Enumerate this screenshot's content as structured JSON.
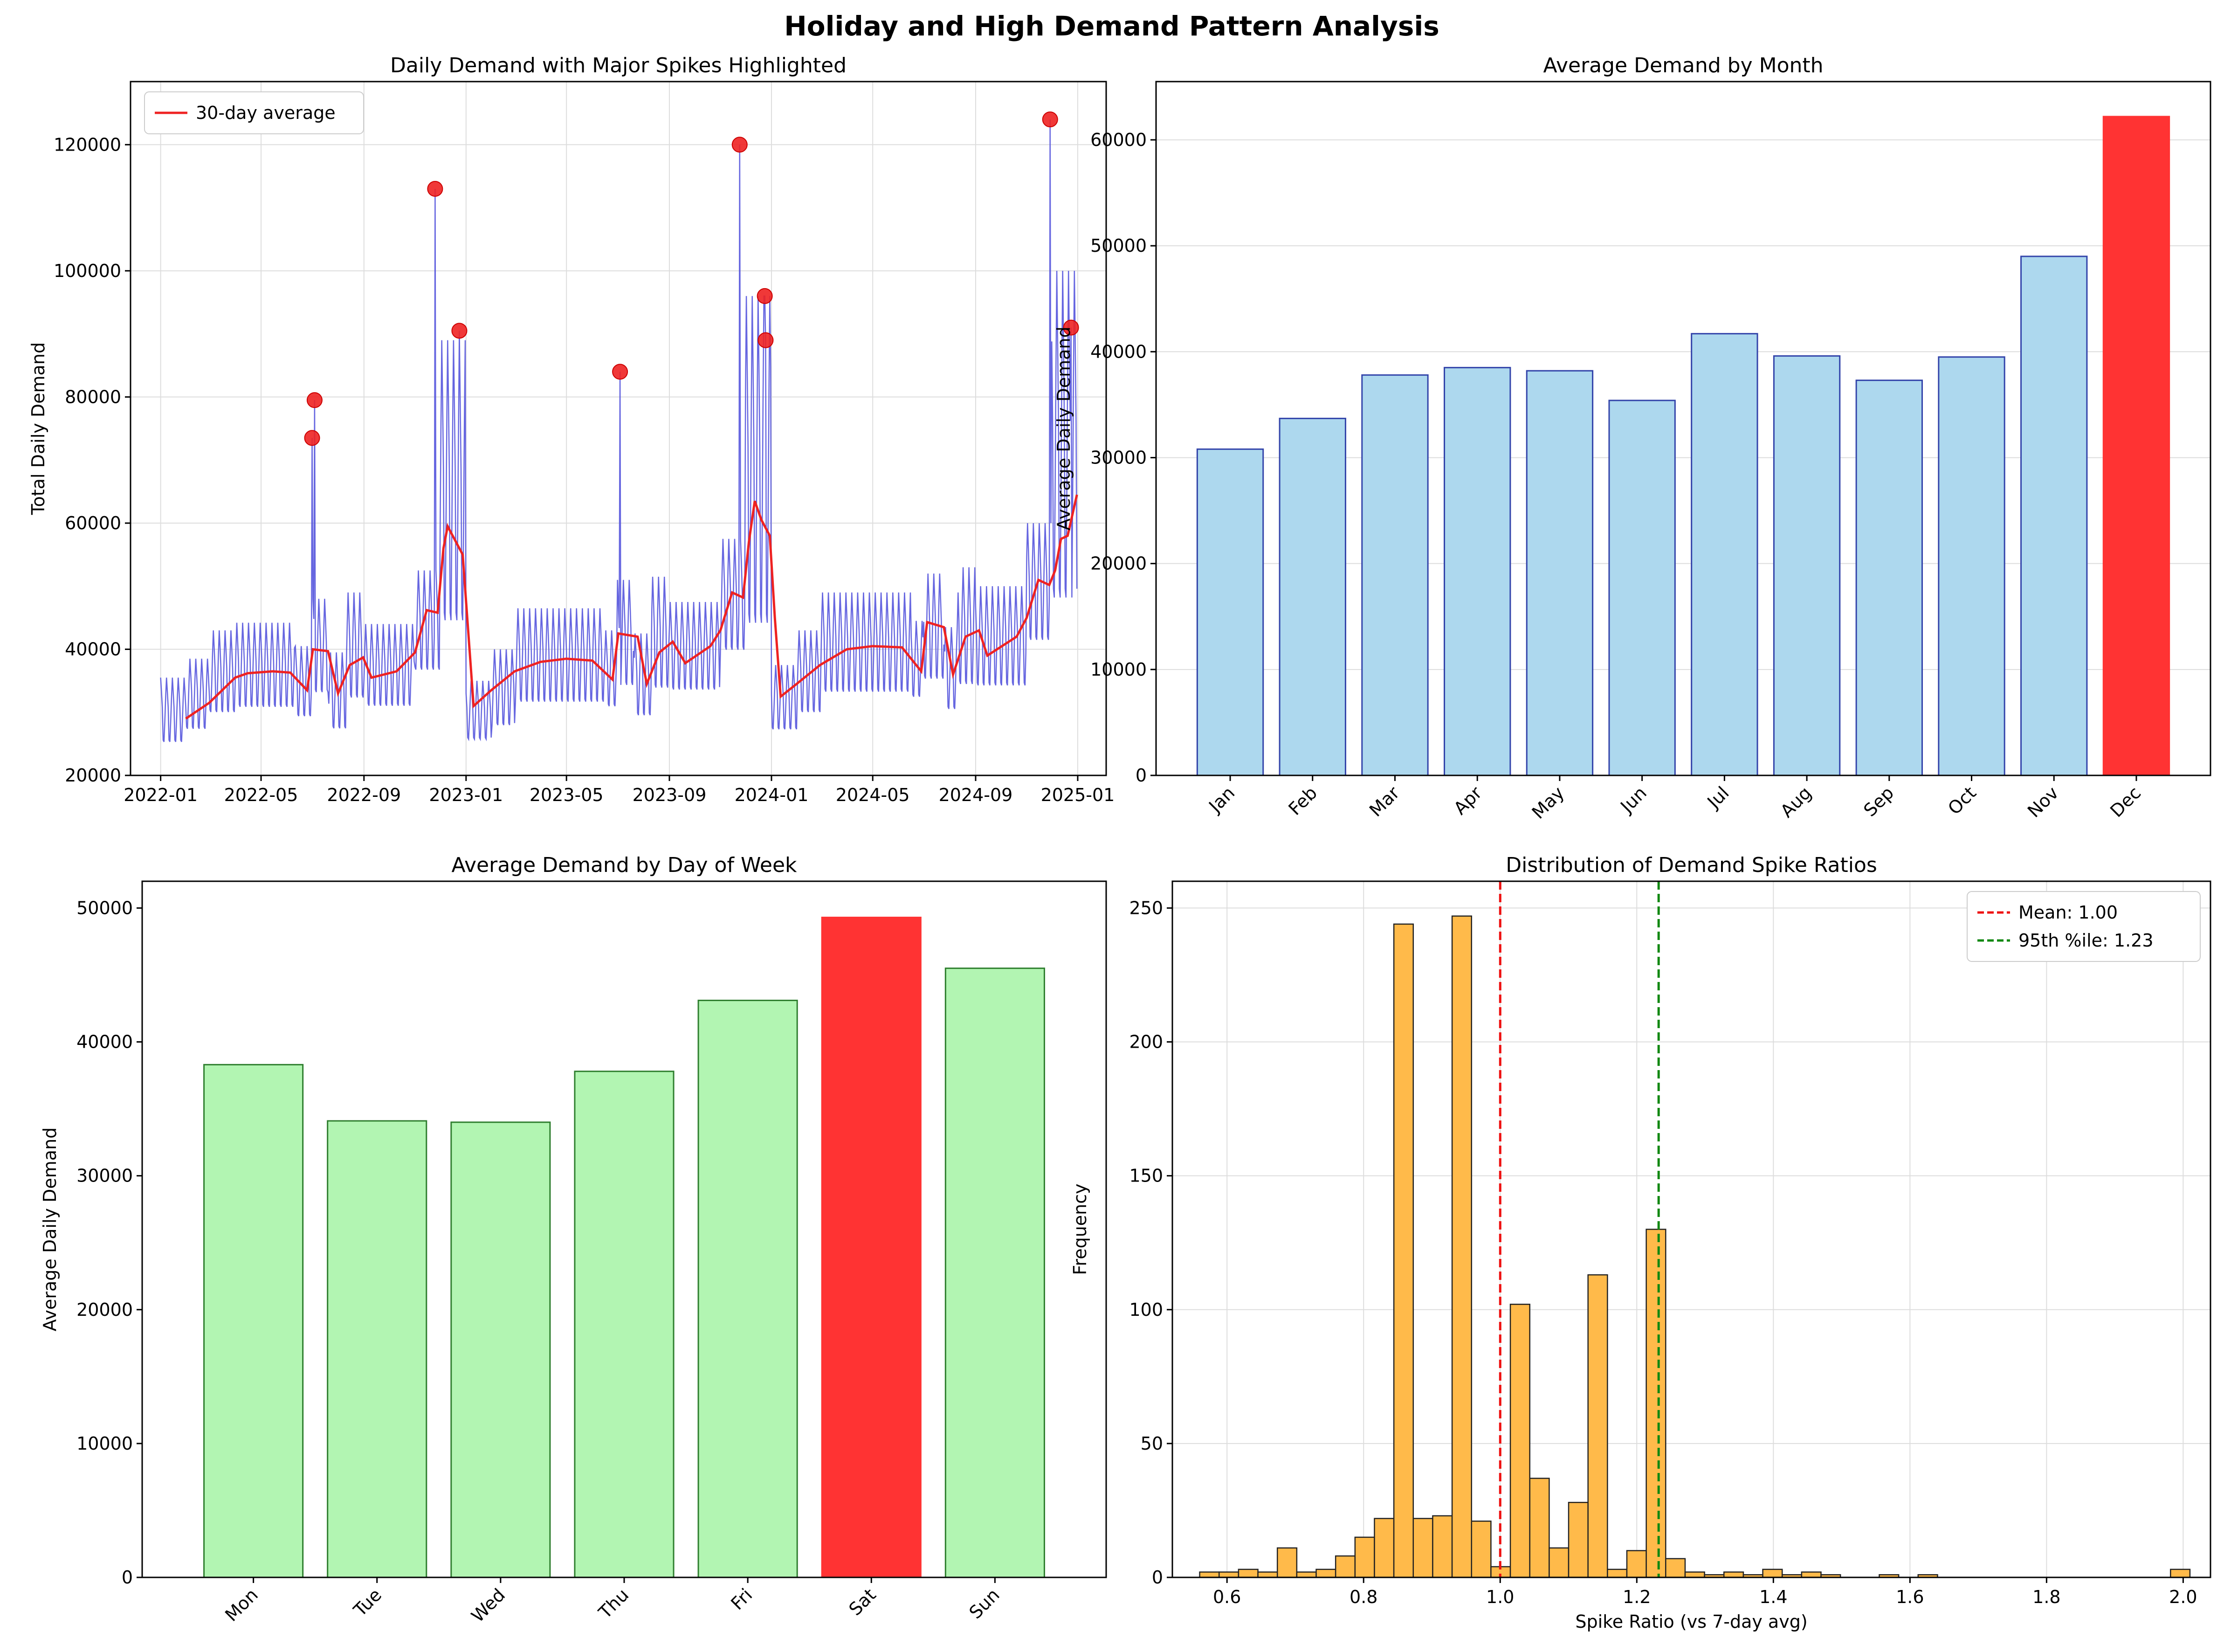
{
  "figure": {
    "title": "Holiday and High Demand Pattern Analysis"
  },
  "chart_data": [
    {
      "id": "daily",
      "type": "line",
      "title": "Daily Demand with Major Spikes Highlighted",
      "xlabel": "",
      "ylabel": "Total Daily Demand",
      "x_range": [
        "2021-11-26",
        "2025-02-04"
      ],
      "ylim": [
        20000,
        130000
      ],
      "x_ticks": [
        "2022-01",
        "2022-05",
        "2022-09",
        "2023-01",
        "2023-05",
        "2023-09",
        "2024-01",
        "2024-05",
        "2024-09",
        "2025-01"
      ],
      "y_ticks": [
        20000,
        40000,
        60000,
        80000,
        100000,
        120000
      ],
      "legend": {
        "position": "top-left",
        "entries": [
          "30-day average"
        ]
      },
      "grid": true,
      "series_colors": {
        "daily": "#5555dd",
        "avg": "#ee2222",
        "spike": "#ee2222"
      },
      "segments": [
        {
          "start": "2022-01-01",
          "end": "2022-01-31",
          "base": 30000,
          "amp": 5500
        },
        {
          "start": "2022-02-01",
          "end": "2022-02-28",
          "base": 32500,
          "amp": 6000
        },
        {
          "start": "2022-03-01",
          "end": "2022-03-31",
          "base": 36000,
          "amp": 7000
        },
        {
          "start": "2022-04-01",
          "end": "2022-06-10",
          "base": 37000,
          "amp": 7200
        },
        {
          "start": "2022-06-11",
          "end": "2022-06-30",
          "base": 34500,
          "amp": 6000
        },
        {
          "start": "2022-07-01",
          "end": "2022-07-20",
          "base": 40000,
          "amp": 8000
        },
        {
          "start": "2022-07-21",
          "end": "2022-08-10",
          "base": 33000,
          "amp": 6500
        },
        {
          "start": "2022-08-11",
          "end": "2022-08-31",
          "base": 40000,
          "amp": 9000
        },
        {
          "start": "2022-09-01",
          "end": "2022-10-31",
          "base": 37000,
          "amp": 7000
        },
        {
          "start": "2022-11-01",
          "end": "2022-11-30",
          "base": 44000,
          "amp": 8500
        },
        {
          "start": "2022-12-01",
          "end": "2022-12-31",
          "base": 65000,
          "amp": 24000
        },
        {
          "start": "2023-01-01",
          "end": "2023-01-31",
          "base": 30000,
          "amp": 5000
        },
        {
          "start": "2023-02-01",
          "end": "2023-02-28",
          "base": 33500,
          "amp": 6500
        },
        {
          "start": "2023-03-01",
          "end": "2023-06-15",
          "base": 38500,
          "amp": 8000
        },
        {
          "start": "2023-06-16",
          "end": "2023-06-30",
          "base": 36500,
          "amp": 6500
        },
        {
          "start": "2023-07-01",
          "end": "2023-07-20",
          "base": 42000,
          "amp": 9000
        },
        {
          "start": "2023-07-21",
          "end": "2023-08-10",
          "base": 35500,
          "amp": 7000
        },
        {
          "start": "2023-08-11",
          "end": "2023-08-31",
          "base": 42000,
          "amp": 9500
        },
        {
          "start": "2023-09-01",
          "end": "2023-10-31",
          "base": 40000,
          "amp": 7500
        },
        {
          "start": "2023-11-01",
          "end": "2023-11-30",
          "base": 48000,
          "amp": 9500
        },
        {
          "start": "2023-12-01",
          "end": "2023-12-31",
          "base": 68000,
          "amp": 28000
        },
        {
          "start": "2024-01-01",
          "end": "2024-01-31",
          "base": 32000,
          "amp": 5500
        },
        {
          "start": "2024-02-01",
          "end": "2024-02-28",
          "base": 36000,
          "amp": 7000
        },
        {
          "start": "2024-03-01",
          "end": "2024-06-15",
          "base": 40500,
          "amp": 8500
        },
        {
          "start": "2024-06-16",
          "end": "2024-06-30",
          "base": 38000,
          "amp": 6500
        },
        {
          "start": "2024-07-01",
          "end": "2024-07-25",
          "base": 43000,
          "amp": 9000
        },
        {
          "start": "2024-07-26",
          "end": "2024-08-10",
          "base": 36500,
          "amp": 7000
        },
        {
          "start": "2024-08-11",
          "end": "2024-08-31",
          "base": 43000,
          "amp": 10000
        },
        {
          "start": "2024-09-01",
          "end": "2024-10-31",
          "base": 41500,
          "amp": 8500
        },
        {
          "start": "2024-11-01",
          "end": "2024-11-30",
          "base": 50000,
          "amp": 10000
        },
        {
          "start": "2024-12-01",
          "end": "2024-12-31",
          "base": 72000,
          "amp": 28000
        }
      ],
      "moving_average": [
        [
          "2022-01-31",
          29000
        ],
        [
          "2022-02-28",
          31500
        ],
        [
          "2022-03-31",
          35500
        ],
        [
          "2022-04-15",
          36200
        ],
        [
          "2022-05-15",
          36500
        ],
        [
          "2022-06-05",
          36300
        ],
        [
          "2022-06-25",
          33500
        ],
        [
          "2022-07-02",
          40000
        ],
        [
          "2022-07-20",
          39700
        ],
        [
          "2022-08-01",
          33000
        ],
        [
          "2022-08-15",
          37500
        ],
        [
          "2022-08-31",
          38700
        ],
        [
          "2022-09-10",
          35500
        ],
        [
          "2022-10-10",
          36500
        ],
        [
          "2022-11-01",
          39500
        ],
        [
          "2022-11-15",
          46200
        ],
        [
          "2022-11-28",
          45800
        ],
        [
          "2022-12-05",
          56000
        ],
        [
          "2022-12-10",
          59500
        ],
        [
          "2022-12-20",
          57000
        ],
        [
          "2022-12-28",
          55000
        ],
        [
          "2023-01-10",
          31000
        ],
        [
          "2023-01-31",
          33500
        ],
        [
          "2023-02-28",
          36500
        ],
        [
          "2023-03-31",
          38000
        ],
        [
          "2023-05-01",
          38500
        ],
        [
          "2023-06-01",
          38200
        ],
        [
          "2023-06-25",
          35200
        ],
        [
          "2023-07-02",
          42500
        ],
        [
          "2023-07-25",
          42000
        ],
        [
          "2023-08-05",
          34500
        ],
        [
          "2023-08-20",
          39500
        ],
        [
          "2023-09-05",
          41200
        ],
        [
          "2023-09-20",
          37800
        ],
        [
          "2023-10-20",
          40500
        ],
        [
          "2023-11-01",
          43000
        ],
        [
          "2023-11-15",
          49000
        ],
        [
          "2023-11-28",
          48200
        ],
        [
          "2023-12-05",
          57000
        ],
        [
          "2023-12-12",
          63500
        ],
        [
          "2023-12-20",
          60500
        ],
        [
          "2023-12-30",
          58000
        ],
        [
          "2024-01-05",
          45000
        ],
        [
          "2024-01-12",
          32500
        ],
        [
          "2024-01-31",
          34500
        ],
        [
          "2024-02-28",
          37500
        ],
        [
          "2024-03-31",
          40000
        ],
        [
          "2024-05-01",
          40500
        ],
        [
          "2024-06-05",
          40300
        ],
        [
          "2024-06-28",
          36500
        ],
        [
          "2024-07-05",
          44300
        ],
        [
          "2024-07-25",
          43500
        ],
        [
          "2024-08-05",
          36000
        ],
        [
          "2024-08-20",
          42000
        ],
        [
          "2024-09-05",
          43000
        ],
        [
          "2024-09-15",
          39000
        ],
        [
          "2024-10-20",
          42000
        ],
        [
          "2024-11-01",
          45000
        ],
        [
          "2024-11-15",
          51000
        ],
        [
          "2024-11-28",
          50200
        ],
        [
          "2024-12-05",
          52500
        ],
        [
          "2024-12-12",
          57500
        ],
        [
          "2024-12-20",
          58000
        ],
        [
          "2024-12-31",
          64500
        ]
      ],
      "spikes": [
        [
          "2022-07-01",
          73500
        ],
        [
          "2022-07-04",
          79500
        ],
        [
          "2022-11-25",
          113000
        ],
        [
          "2022-12-24",
          90500
        ],
        [
          "2023-07-04",
          84000
        ],
        [
          "2023-11-24",
          120000
        ],
        [
          "2023-12-24",
          96000
        ],
        [
          "2023-12-25",
          89000
        ],
        [
          "2024-11-29",
          124000
        ],
        [
          "2024-12-24",
          91000
        ]
      ]
    },
    {
      "id": "monthly",
      "type": "bar",
      "title": "Average Demand by Month",
      "xlabel": "",
      "ylabel": "Average Daily Demand",
      "categories": [
        "Jan",
        "Feb",
        "Mar",
        "Apr",
        "May",
        "Jun",
        "Jul",
        "Aug",
        "Sep",
        "Oct",
        "Nov",
        "Dec"
      ],
      "values": [
        30800,
        33700,
        37800,
        38500,
        38200,
        35400,
        41700,
        39600,
        37300,
        39500,
        49000,
        62200
      ],
      "highlight_index": 11,
      "ylim": [
        0,
        65500
      ],
      "y_ticks": [
        0,
        10000,
        20000,
        30000,
        40000,
        50000,
        60000
      ],
      "grid": true,
      "colors": {
        "fill": "#add8ee",
        "edge": "#3344aa",
        "highlight": "#ff3333"
      }
    },
    {
      "id": "weekday",
      "type": "bar",
      "title": "Average Demand by Day of Week",
      "xlabel": "",
      "ylabel": "Average Daily Demand",
      "categories": [
        "Mon",
        "Tue",
        "Wed",
        "Thu",
        "Fri",
        "Sat",
        "Sun"
      ],
      "values": [
        38300,
        34100,
        34000,
        37800,
        43100,
        49300,
        45500
      ],
      "highlight_index": 5,
      "ylim": [
        0,
        52000
      ],
      "y_ticks": [
        0,
        10000,
        20000,
        30000,
        40000,
        50000
      ],
      "grid": false,
      "colors": {
        "fill": "#b2f5b2",
        "edge": "#2f7f2f",
        "highlight": "#ff3333"
      }
    },
    {
      "id": "ratios",
      "type": "histogram",
      "title": "Distribution of Demand Spike Ratios",
      "xlabel": "Spike Ratio (vs 7-day avg)",
      "ylabel": "Frequency",
      "xlim": [
        0.52,
        2.04
      ],
      "ylim": [
        0,
        260
      ],
      "x_ticks": [
        0.6,
        0.8,
        1.0,
        1.2,
        1.4,
        1.6,
        1.8,
        2.0
      ],
      "x_tick_labels": [
        "0.6",
        "0.8",
        "1.0",
        "1.2",
        "1.4",
        "1.6",
        "1.8",
        "2.0"
      ],
      "y_ticks": [
        0,
        50,
        100,
        150,
        200,
        250
      ],
      "bin_start": 0.56,
      "bin_width": 0.02843,
      "counts": [
        2,
        2,
        3,
        2,
        11,
        2,
        3,
        8,
        15,
        22,
        244,
        22,
        23,
        247,
        21,
        4,
        102,
        37,
        11,
        28,
        113,
        3,
        10,
        130,
        7,
        2,
        1,
        2,
        1,
        3,
        1,
        2,
        1,
        0,
        0,
        1,
        0,
        1,
        0,
        0,
        0,
        0,
        0,
        0,
        0,
        0,
        0,
        0,
        0,
        0,
        3
      ],
      "grid": true,
      "colors": {
        "fill": "#ffba4a",
        "edge": "#222222",
        "mean": "#ee1111",
        "p95": "#118811"
      },
      "lines": [
        {
          "name": "Mean: 1.00",
          "value": 1.0
        },
        {
          "name": "95th %ile: 1.23",
          "value": 1.232
        }
      ],
      "legend": {
        "position": "top-right",
        "entries": [
          "Mean: 1.00",
          "95th %ile: 1.23"
        ]
      }
    }
  ]
}
